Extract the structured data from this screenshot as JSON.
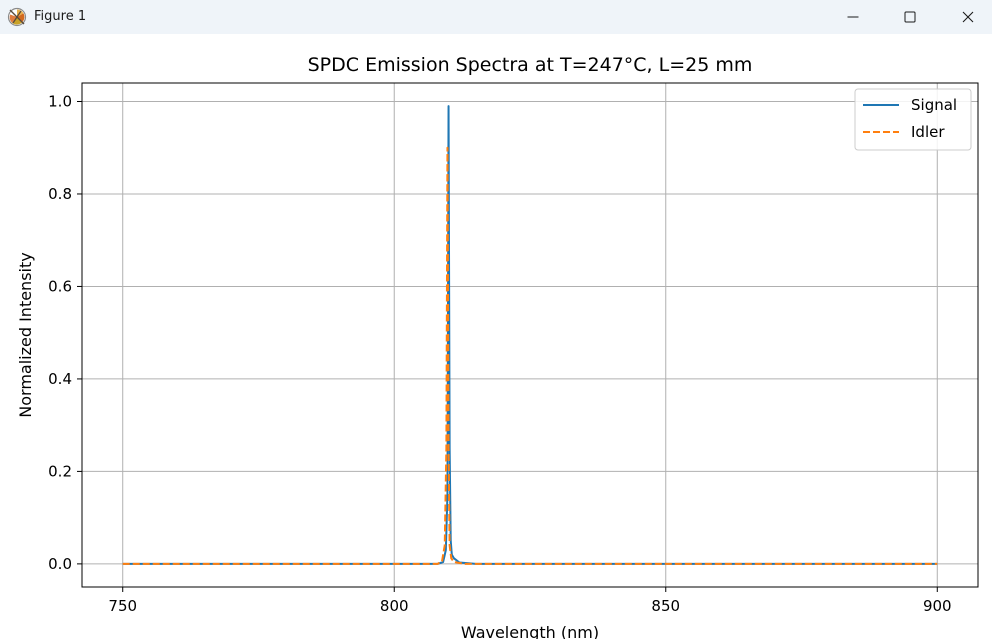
{
  "window": {
    "title": "Figure 1",
    "icons": {
      "app": "matplotlib-figure-icon",
      "minimize": "minimize-icon",
      "maximize": "maximize-icon",
      "close": "close-icon"
    }
  },
  "chart_data": {
    "type": "line",
    "title": "SPDC Emission Spectra at T=247°C, L=25 mm",
    "xlabel": "Wavelength (nm)",
    "ylabel": "Normalized Intensity",
    "xlim": [
      742.5,
      907.5
    ],
    "ylim": [
      -0.05,
      1.04
    ],
    "xticks": [
      750,
      800,
      850,
      900
    ],
    "yticks": [
      0.0,
      0.2,
      0.4,
      0.6,
      0.8,
      1.0
    ],
    "xtick_labels": [
      "750",
      "800",
      "850",
      "900"
    ],
    "ytick_labels": [
      "0.0",
      "0.2",
      "0.4",
      "0.6",
      "0.8",
      "1.0"
    ],
    "grid": true,
    "legend_position": "top-right",
    "series": [
      {
        "name": "Signal",
        "color": "#1f77b4",
        "style": "solid",
        "x": [
          750,
          808,
          809,
          809.5,
          809.8,
          810.0,
          810.2,
          810.4,
          810.6,
          811,
          812,
          815,
          900
        ],
        "y": [
          0.0,
          0.0,
          0.004,
          0.03,
          0.15,
          0.99,
          0.25,
          0.05,
          0.02,
          0.012,
          0.003,
          0.0,
          0.0
        ]
      },
      {
        "name": "Idler",
        "color": "#ff7f0e",
        "style": "dashed",
        "x": [
          750,
          808,
          808.8,
          809.3,
          809.6,
          809.8,
          810.0,
          810.2,
          810.5,
          811,
          813,
          900
        ],
        "y": [
          0.0,
          0.0,
          0.006,
          0.04,
          0.25,
          0.9,
          0.25,
          0.04,
          0.012,
          0.004,
          0.0,
          0.0
        ]
      }
    ]
  }
}
